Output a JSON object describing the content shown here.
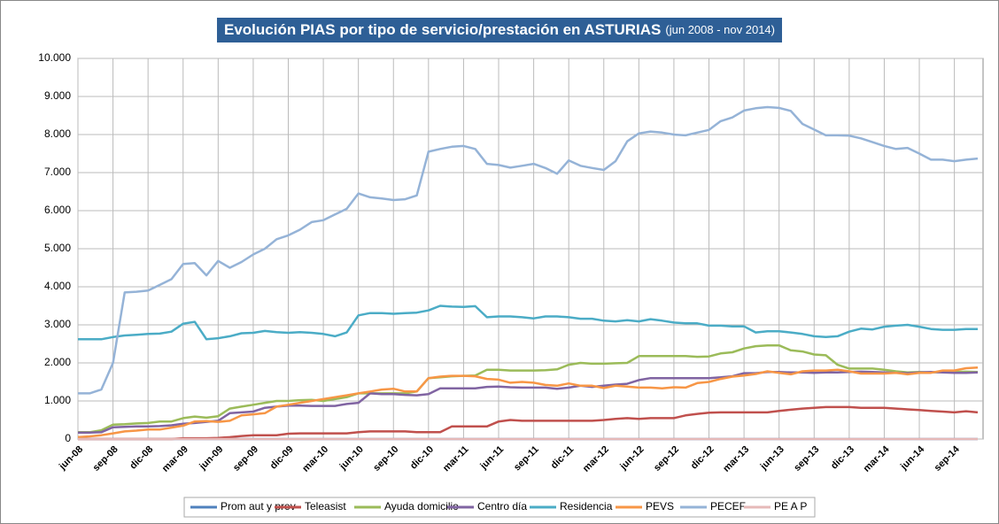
{
  "chart_data": {
    "type": "line",
    "title": "Evolución PIAS por tipo de servicio/prestación en ASTURIAS",
    "subtitle": "(jun 2008 - nov 2014)",
    "categories": [
      "jun-08",
      null,
      null,
      "sep-08",
      null,
      null,
      "dic-08",
      null,
      null,
      "mar-09",
      null,
      null,
      "jun-09",
      null,
      null,
      "sep-09",
      null,
      null,
      "dic-09",
      null,
      null,
      "mar-10",
      null,
      null,
      "jun-10",
      null,
      null,
      "sep-10",
      null,
      null,
      "dic-10",
      null,
      null,
      "mar-11",
      null,
      null,
      "jun-11",
      null,
      null,
      "sep-11",
      null,
      null,
      "dic-11",
      null,
      null,
      "mar-12",
      null,
      null,
      "jun-12",
      null,
      null,
      "sep-12",
      null,
      null,
      "dic-12",
      null,
      null,
      "mar-13",
      null,
      null,
      "jun-13",
      null,
      null,
      "sep-13",
      null,
      null,
      "dic-13",
      null,
      null,
      "mar-14",
      null,
      null,
      "jun-14",
      null,
      null,
      "sep-14",
      null,
      null
    ],
    "ylim": [
      0,
      10000
    ],
    "yticks": [
      0,
      {
        "value": 1000,
        "label": "1.000"
      },
      {
        "value": 2000,
        "label": "2.000"
      },
      {
        "value": 3000,
        "label": "3.000"
      },
      {
        "value": 4000,
        "label": "4.000"
      },
      {
        "value": 5000,
        "label": "5.000"
      },
      {
        "value": 6000,
        "label": "6.000"
      },
      {
        "value": 7000,
        "label": "7.000"
      },
      {
        "value": 8000,
        "label": "8.000"
      },
      {
        "value": 9000,
        "label": "9.000"
      },
      {
        "value": 10000,
        "label": "10.000"
      }
    ],
    "grid": true,
    "legend": "bottom",
    "series": [
      {
        "name": "Prom aut y prev",
        "color": "#4f81bd",
        "values": [
          0,
          0,
          0,
          0,
          0,
          0,
          0,
          0,
          0,
          0,
          0,
          0,
          0,
          0,
          0,
          0,
          0,
          0,
          0,
          0,
          0,
          0,
          0,
          0,
          0,
          0,
          0,
          0,
          0,
          0,
          0,
          0,
          0,
          0,
          0,
          0,
          0,
          0,
          0,
          0,
          0,
          0,
          0,
          0,
          0,
          0,
          0,
          0,
          0,
          0,
          0,
          0,
          0,
          0,
          0,
          0,
          0,
          0,
          0,
          0,
          0,
          0,
          0,
          0,
          0,
          0,
          0,
          0,
          0,
          0,
          0,
          0,
          0,
          0,
          0,
          0,
          0,
          0
        ]
      },
      {
        "name": "Teleasist",
        "color": "#c0504d",
        "values": [
          0,
          0,
          0,
          0,
          0,
          0,
          0,
          0,
          0,
          20,
          20,
          20,
          30,
          50,
          80,
          100,
          100,
          100,
          140,
          150,
          150,
          150,
          150,
          150,
          180,
          200,
          200,
          200,
          200,
          180,
          180,
          180,
          330,
          330,
          330,
          330,
          460,
          500,
          480,
          480,
          480,
          480,
          480,
          480,
          480,
          500,
          530,
          550,
          530,
          550,
          550,
          550,
          620,
          660,
          690,
          700,
          700,
          700,
          700,
          700,
          740,
          770,
          800,
          820,
          840,
          840,
          840,
          820,
          820,
          820,
          800,
          780,
          760,
          740,
          720,
          700,
          730,
          700
        ]
      },
      {
        "name": "Ayuda domicilio",
        "color": "#9bbb59",
        "values": [
          180,
          180,
          230,
          380,
          390,
          410,
          420,
          460,
          460,
          550,
          590,
          560,
          600,
          800,
          850,
          900,
          950,
          1000,
          1000,
          1020,
          1030,
          1000,
          1050,
          1100,
          1200,
          1200,
          1200,
          1200,
          1200,
          1250,
          1600,
          1620,
          1650,
          1660,
          1670,
          1820,
          1820,
          1800,
          1800,
          1800,
          1810,
          1830,
          1950,
          2000,
          1980,
          1980,
          1990,
          2000,
          2180,
          2180,
          2180,
          2180,
          2180,
          2160,
          2170,
          2250,
          2280,
          2380,
          2440,
          2460,
          2460,
          2330,
          2300,
          2220,
          2200,
          1950,
          1850,
          1850,
          1850,
          1820,
          1780,
          1750,
          1760,
          1750,
          1760,
          1760,
          1770,
          1760
        ]
      },
      {
        "name": "Centro día",
        "color": "#8064a2",
        "values": [
          170,
          170,
          180,
          310,
          320,
          330,
          330,
          340,
          360,
          400,
          420,
          450,
          480,
          680,
          700,
          720,
          820,
          850,
          880,
          880,
          870,
          870,
          870,
          920,
          950,
          1200,
          1180,
          1180,
          1160,
          1150,
          1180,
          1330,
          1330,
          1330,
          1330,
          1370,
          1380,
          1360,
          1350,
          1350,
          1350,
          1320,
          1350,
          1400,
          1370,
          1400,
          1430,
          1450,
          1550,
          1600,
          1600,
          1600,
          1600,
          1600,
          1600,
          1620,
          1650,
          1730,
          1730,
          1760,
          1760,
          1750,
          1750,
          1740,
          1750,
          1750,
          1760,
          1770,
          1760,
          1750,
          1740,
          1730,
          1750,
          1760,
          1750,
          1740,
          1740,
          1750
        ]
      },
      {
        "name": "Residencia",
        "color": "#4bacc6",
        "values": [
          2620,
          2620,
          2620,
          2680,
          2720,
          2740,
          2760,
          2770,
          2820,
          3030,
          3080,
          2620,
          2650,
          2700,
          2780,
          2790,
          2840,
          2810,
          2790,
          2810,
          2790,
          2760,
          2700,
          2800,
          3250,
          3310,
          3310,
          3290,
          3310,
          3320,
          3380,
          3500,
          3480,
          3470,
          3490,
          3200,
          3220,
          3220,
          3200,
          3170,
          3220,
          3220,
          3200,
          3160,
          3160,
          3110,
          3090,
          3120,
          3090,
          3150,
          3110,
          3060,
          3040,
          3040,
          2980,
          2980,
          2960,
          2960,
          2800,
          2830,
          2830,
          2800,
          2760,
          2700,
          2680,
          2700,
          2820,
          2900,
          2880,
          2950,
          2980,
          3000,
          2950,
          2890,
          2870,
          2870,
          2890,
          2890
        ]
      },
      {
        "name": "PEVS",
        "color": "#f79646",
        "values": [
          50,
          70,
          100,
          150,
          200,
          220,
          250,
          250,
          300,
          350,
          460,
          470,
          450,
          480,
          620,
          650,
          680,
          850,
          900,
          950,
          1000,
          1050,
          1100,
          1150,
          1200,
          1250,
          1300,
          1320,
          1250,
          1250,
          1600,
          1640,
          1660,
          1660,
          1650,
          1580,
          1560,
          1480,
          1500,
          1480,
          1420,
          1400,
          1460,
          1400,
          1400,
          1340,
          1400,
          1380,
          1350,
          1350,
          1330,
          1360,
          1350,
          1470,
          1500,
          1580,
          1640,
          1670,
          1710,
          1780,
          1740,
          1700,
          1780,
          1800,
          1800,
          1820,
          1780,
          1720,
          1720,
          1720,
          1740,
          1700,
          1740,
          1740,
          1800,
          1800,
          1860,
          1880
        ]
      },
      {
        "name": "PECEF",
        "color": "#95b3d7",
        "values": [
          1200,
          1200,
          1300,
          2000,
          3850,
          3870,
          3900,
          4050,
          4200,
          4600,
          4620,
          4300,
          4680,
          4500,
          4650,
          4850,
          5000,
          5250,
          5350,
          5500,
          5700,
          5750,
          5900,
          6050,
          6450,
          6350,
          6320,
          6280,
          6300,
          6400,
          7550,
          7620,
          7680,
          7700,
          7620,
          7230,
          7200,
          7130,
          7180,
          7230,
          7120,
          6970,
          7320,
          7180,
          7120,
          7070,
          7300,
          7820,
          8030,
          8080,
          8050,
          8000,
          7980,
          8050,
          8120,
          8350,
          8450,
          8630,
          8690,
          8720,
          8700,
          8620,
          8280,
          8130,
          7980,
          7980,
          7970,
          7900,
          7800,
          7700,
          7620,
          7650,
          7500,
          7340,
          7340,
          7300,
          7340,
          7370
        ]
      },
      {
        "name": "PE A P",
        "color": "#e6b9b8",
        "values": [
          0,
          0,
          0,
          0,
          0,
          0,
          0,
          0,
          0,
          0,
          0,
          0,
          0,
          0,
          0,
          0,
          0,
          0,
          0,
          0,
          0,
          0,
          0,
          0,
          0,
          0,
          0,
          0,
          0,
          0,
          0,
          0,
          0,
          0,
          0,
          0,
          0,
          0,
          0,
          0,
          0,
          0,
          0,
          0,
          0,
          0,
          0,
          0,
          0,
          0,
          0,
          0,
          0,
          0,
          0,
          0,
          0,
          0,
          0,
          0,
          0,
          0,
          0,
          0,
          0,
          0,
          0,
          0,
          0,
          0,
          0,
          0,
          0,
          0,
          0,
          0,
          0,
          0
        ]
      }
    ]
  }
}
